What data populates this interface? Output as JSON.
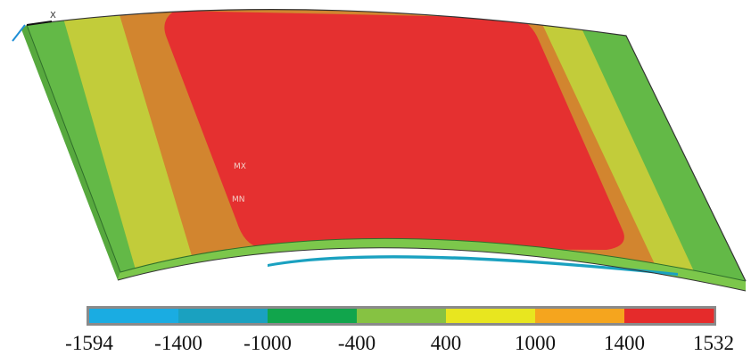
{
  "viewport": {
    "axis_label": "X",
    "markers": {
      "max": "MX",
      "min": "MN"
    }
  },
  "legend": {
    "ticks": [
      "-1594",
      "-1400",
      "-1000",
      "-400",
      "400",
      "1000",
      "1400",
      "1532"
    ],
    "colors": [
      "#1aace2",
      "#1aa1c0",
      "#11a54c",
      "#86c242",
      "#e8e61f",
      "#f5a51e",
      "#e52b2b"
    ]
  },
  "colors": {
    "plate_side_light": "#7cc74b",
    "plate_top_outer": "#63b947",
    "plate_top_yellow": "#c2cc3a",
    "plate_top_orange": "#d2852f",
    "plate_top_red": "#e53030",
    "legend_frame": "#8a8a8a"
  }
}
